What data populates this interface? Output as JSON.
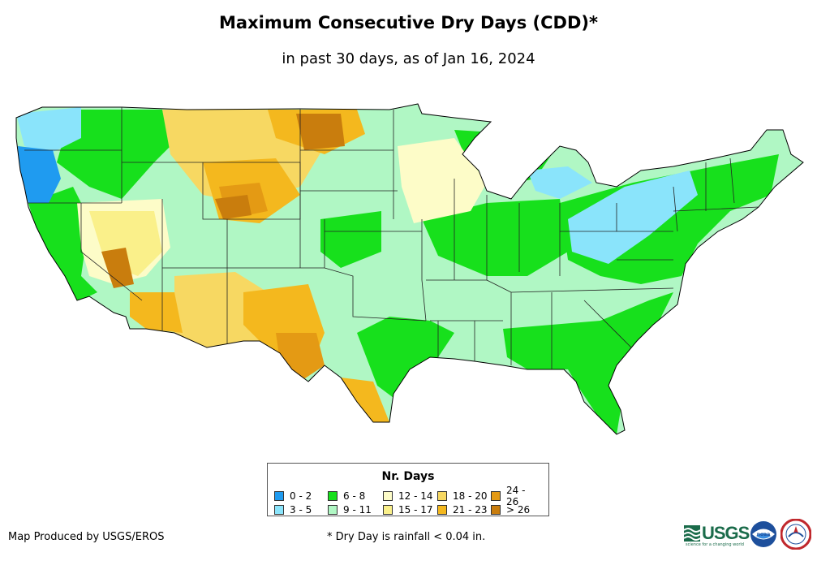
{
  "title": "Maximum Consecutive Dry Days (CDD)*",
  "subtitle": "in past 30 days, as of Jan 16, 2024",
  "legend": {
    "title": "Nr. Days",
    "items": [
      {
        "label": "0 - 2",
        "color": "#1f9bf0"
      },
      {
        "label": "3 - 5",
        "color": "#8ae4fb"
      },
      {
        "label": "6 - 8",
        "color": "#17e01c"
      },
      {
        "label": "9 - 11",
        "color": "#b0f7c4"
      },
      {
        "label": "12 - 14",
        "color": "#fdfcc8"
      },
      {
        "label": "15 - 17",
        "color": "#faf08a"
      },
      {
        "label": "18 - 20",
        "color": "#f7d862"
      },
      {
        "label": "21 - 23",
        "color": "#f4b81e"
      },
      {
        "label": "24 - 26",
        "color": "#e49a14"
      },
      {
        "label": "> 26",
        "color": "#c97d0d"
      }
    ]
  },
  "credit": "Map Produced by USGS/EROS",
  "footnote": "* Dry Day is rainfall < 0.04 in.",
  "logos": {
    "usgs": "USGS",
    "usgs_tagline": "science for a changing world",
    "noaa": "noaa"
  }
}
